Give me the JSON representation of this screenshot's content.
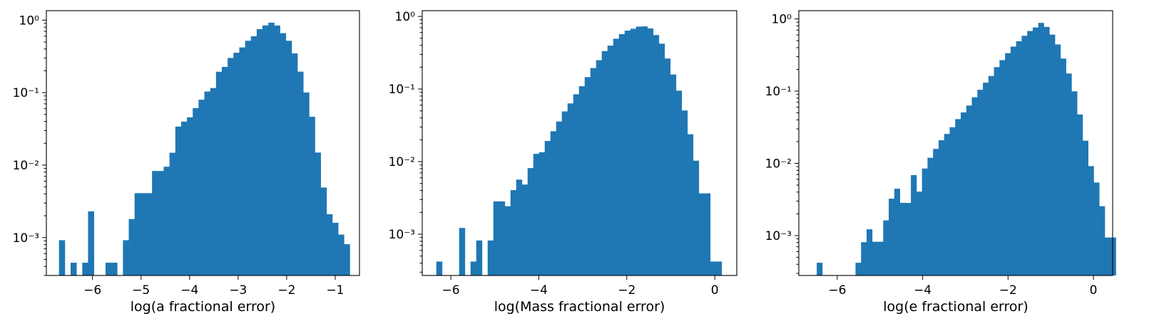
{
  "bar_color": "#1f77b4",
  "chart_data": [
    {
      "type": "bar",
      "xlabel": "log(a fractional error)",
      "ylabel": "",
      "yscale": "log",
      "xlim": [
        -6.95,
        -0.5
      ],
      "ylim": [
        0.0003,
        1.35
      ],
      "grid": false,
      "xticks": [
        -6,
        -5,
        -4,
        -3,
        -2,
        -1
      ],
      "xtick_labels": [
        "−6",
        "−5",
        "−4",
        "−3",
        "−2",
        "−1"
      ],
      "yticks": [
        0.001,
        0.01,
        0.1,
        1
      ],
      "ytick_labels": [
        "10⁻³",
        "10⁻²",
        "10⁻¹",
        "10⁰"
      ],
      "bin_start": -6.69,
      "bin_width": 0.1198,
      "values": [
        0.00092,
        0,
        0.00045,
        0,
        0.00045,
        0.0023,
        0,
        0,
        0.00045,
        0.00045,
        0,
        0.00092,
        0.0018,
        0.0041,
        0.0041,
        0.0041,
        0.0083,
        0.0083,
        0.0095,
        0.0148,
        0.034,
        0.0398,
        0.0456,
        0.0612,
        0.0798,
        0.1036,
        0.1157,
        0.194,
        0.2262,
        0.3007,
        0.3548,
        0.4201,
        0.5189,
        0.5985,
        0.7516,
        0.8459,
        0.9226,
        0.8434,
        0.6603,
        0.5186,
        0.3473,
        0.1946,
        0.1003,
        0.0464,
        0.0149,
        0.0049,
        0.0021,
        0.0016,
        0.0011,
        0.00081
      ]
    },
    {
      "type": "bar",
      "xlabel": "log(Mass fractional error)",
      "ylabel": "",
      "yscale": "log",
      "xlim": [
        -6.65,
        0.5
      ],
      "ylim": [
        0.00027,
        1.2
      ],
      "grid": false,
      "xticks": [
        -6,
        -4,
        -2,
        0
      ],
      "xtick_labels": [
        "−6",
        "−4",
        "−2",
        "0"
      ],
      "yticks": [
        0.001,
        0.01,
        0.1,
        1
      ],
      "ytick_labels": [
        "10⁻³",
        "10⁻²",
        "10⁻¹",
        "10⁰"
      ],
      "bin_start": -6.33,
      "bin_width": 0.1297,
      "values": [
        0.00042,
        0,
        0,
        0,
        0.00122,
        0,
        0.00042,
        0.00082,
        0,
        0.00082,
        0.00283,
        0.00283,
        0.00243,
        0.00405,
        0.00565,
        0.00483,
        0.00815,
        0.01279,
        0.01343,
        0.01927,
        0.02624,
        0.03564,
        0.04916,
        0.06328,
        0.0848,
        0.1093,
        0.1459,
        0.1943,
        0.2495,
        0.3331,
        0.3959,
        0.4934,
        0.5696,
        0.6374,
        0.6755,
        0.7228,
        0.7289,
        0.6829,
        0.5544,
        0.4216,
        0.2631,
        0.1586,
        0.0949,
        0.0506,
        0.0238,
        0.0103,
        0.00365,
        0.00365,
        0.00042,
        0.00042
      ]
    },
    {
      "type": "bar",
      "xlabel": "log(e fractional error)",
      "ylabel": "",
      "yscale": "log",
      "xlim": [
        -6.9,
        0.45
      ],
      "ylim": [
        0.00028,
        1.3
      ],
      "grid": false,
      "xticks": [
        -6,
        -4,
        -2,
        0
      ],
      "xtick_labels": [
        "−6",
        "−4",
        "−2",
        "0"
      ],
      "yticks": [
        0.001,
        0.01,
        0.1,
        1
      ],
      "ytick_labels": [
        "10⁻³",
        "10⁻²",
        "10⁻¹",
        "10⁰"
      ],
      "bin_start": -6.48,
      "bin_width": 0.1297,
      "values": [
        0.00042,
        0,
        0,
        0,
        0,
        0,
        0,
        0.00042,
        0.00081,
        0.00122,
        0.00082,
        0.00082,
        0.00162,
        0.00324,
        0.00445,
        0.00284,
        0.00283,
        0.00687,
        0.00406,
        0.00848,
        0.01194,
        0.01583,
        0.02088,
        0.02552,
        0.0316,
        0.04097,
        0.05074,
        0.06311,
        0.08207,
        0.1044,
        0.1309,
        0.162,
        0.2149,
        0.2687,
        0.3357,
        0.4134,
        0.4899,
        0.5839,
        0.6798,
        0.7612,
        0.8807,
        0.7745,
        0.6061,
        0.4426,
        0.2822,
        0.1752,
        0.0993,
        0.0475,
        0.0206,
        0.00915,
        0.00542,
        0.00255,
        0.00094,
        0.00094
      ]
    }
  ]
}
